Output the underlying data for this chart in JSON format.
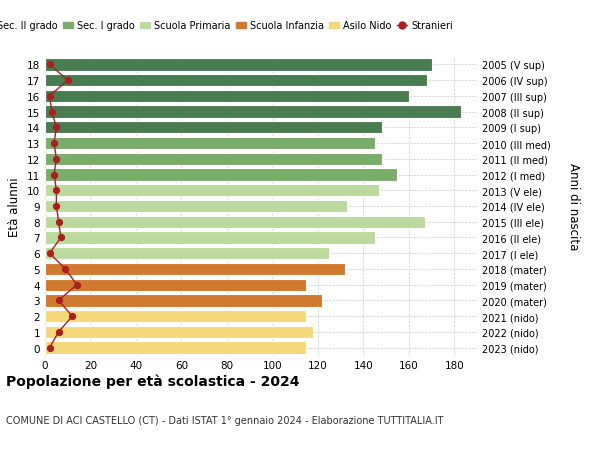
{
  "ages": [
    18,
    17,
    16,
    15,
    14,
    13,
    12,
    11,
    10,
    9,
    8,
    7,
    6,
    5,
    4,
    3,
    2,
    1,
    0
  ],
  "bar_values": [
    170,
    168,
    160,
    183,
    148,
    145,
    148,
    155,
    147,
    133,
    167,
    145,
    125,
    132,
    115,
    122,
    115,
    118,
    115
  ],
  "stranieri_values": [
    2,
    10,
    2,
    3,
    5,
    4,
    5,
    4,
    5,
    5,
    6,
    7,
    2,
    9,
    14,
    6,
    12,
    6,
    2
  ],
  "bar_colors": [
    "#4a7c52",
    "#4a7c52",
    "#4a7c52",
    "#4a7c52",
    "#4a7c52",
    "#7aac6a",
    "#7aac6a",
    "#7aac6a",
    "#bcd9a0",
    "#bcd9a0",
    "#bcd9a0",
    "#bcd9a0",
    "#bcd9a0",
    "#d07a30",
    "#d07a30",
    "#d07a30",
    "#f5d87a",
    "#f5d87a",
    "#f5d87a"
  ],
  "right_labels": [
    "2005 (V sup)",
    "2006 (IV sup)",
    "2007 (III sup)",
    "2008 (II sup)",
    "2009 (I sup)",
    "2010 (III med)",
    "2011 (II med)",
    "2012 (I med)",
    "2013 (V ele)",
    "2014 (IV ele)",
    "2015 (III ele)",
    "2016 (II ele)",
    "2017 (I ele)",
    "2018 (mater)",
    "2019 (mater)",
    "2020 (mater)",
    "2021 (nido)",
    "2022 (nido)",
    "2023 (nido)"
  ],
  "legend_labels": [
    "Sec. II grado",
    "Sec. I grado",
    "Scuola Primaria",
    "Scuola Infanzia",
    "Asilo Nido",
    "Stranieri"
  ],
  "legend_colors": [
    "#4a7c52",
    "#7aac6a",
    "#bcd9a0",
    "#d07a30",
    "#f5d87a",
    "#aa2020"
  ],
  "ylabel": "Età alunni",
  "right_ylabel": "Anni di nascita",
  "title": "Popolazione per età scolastica - 2024",
  "subtitle": "COMUNE DI ACI CASTELLO (CT) - Dati ISTAT 1° gennaio 2024 - Elaborazione TUTTITALIA.IT",
  "xlim": [
    0,
    190
  ],
  "xticks": [
    0,
    20,
    40,
    60,
    80,
    100,
    120,
    140,
    160,
    180
  ],
  "grid_color": "#cccccc",
  "stranieri_color": "#aa2020",
  "bar_height": 0.78
}
